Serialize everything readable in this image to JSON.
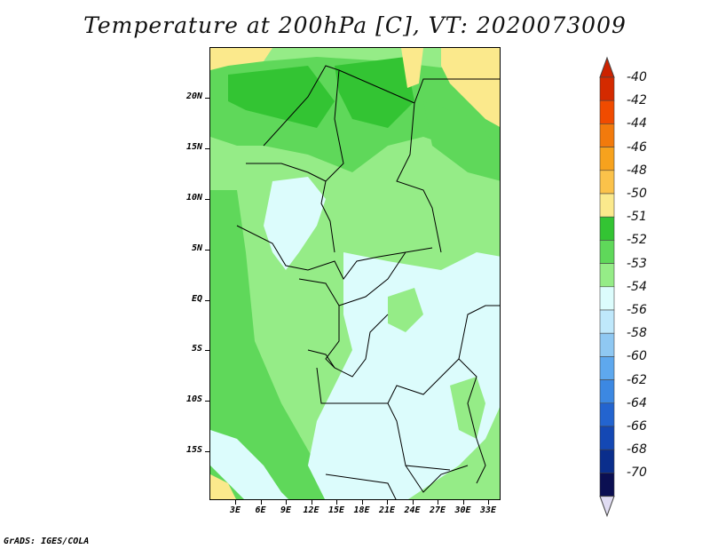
{
  "title": "Temperature at 200hPa [C], VT: 2020073009",
  "credit": "GrADS: IGES/COLA",
  "lat_labels": [
    "20N",
    "15N",
    "10N",
    "5N",
    "EQ",
    "5S",
    "10S",
    "15S"
  ],
  "lon_labels": [
    "3E",
    "6E",
    "9E",
    "12E",
    "15E",
    "18E",
    "21E",
    "24E",
    "27E",
    "30E",
    "33E"
  ],
  "legend": {
    "labels": [
      "-40",
      "-42",
      "-44",
      "-46",
      "-48",
      "-50",
      "-51",
      "-52",
      "-53",
      "-54",
      "-56",
      "-58",
      "-60",
      "-62",
      "-64",
      "-66",
      "-68",
      "-70"
    ],
    "colors": [
      "#d42a00",
      "#f04b00",
      "#f27a0c",
      "#f7a21d",
      "#fbc24a",
      "#fbe98c",
      "#33c433",
      "#5fd85a",
      "#95ec87",
      "#dcfcfc",
      "#bfe8fb",
      "#8fc8f2",
      "#5ea8ee",
      "#3c88e2",
      "#2364cf",
      "#1448b4",
      "#0a2e8c",
      "#0b0f52"
    ],
    "top_arrow_color": "#cc2200",
    "bottom_arrow_color": "#e0dcf2"
  },
  "colors": {
    "yellow": "#fbe98c",
    "dark_green": "#33c433",
    "mid_green": "#5fd85a",
    "light_green": "#95ec87",
    "pale_cyan": "#dcfcfc"
  }
}
